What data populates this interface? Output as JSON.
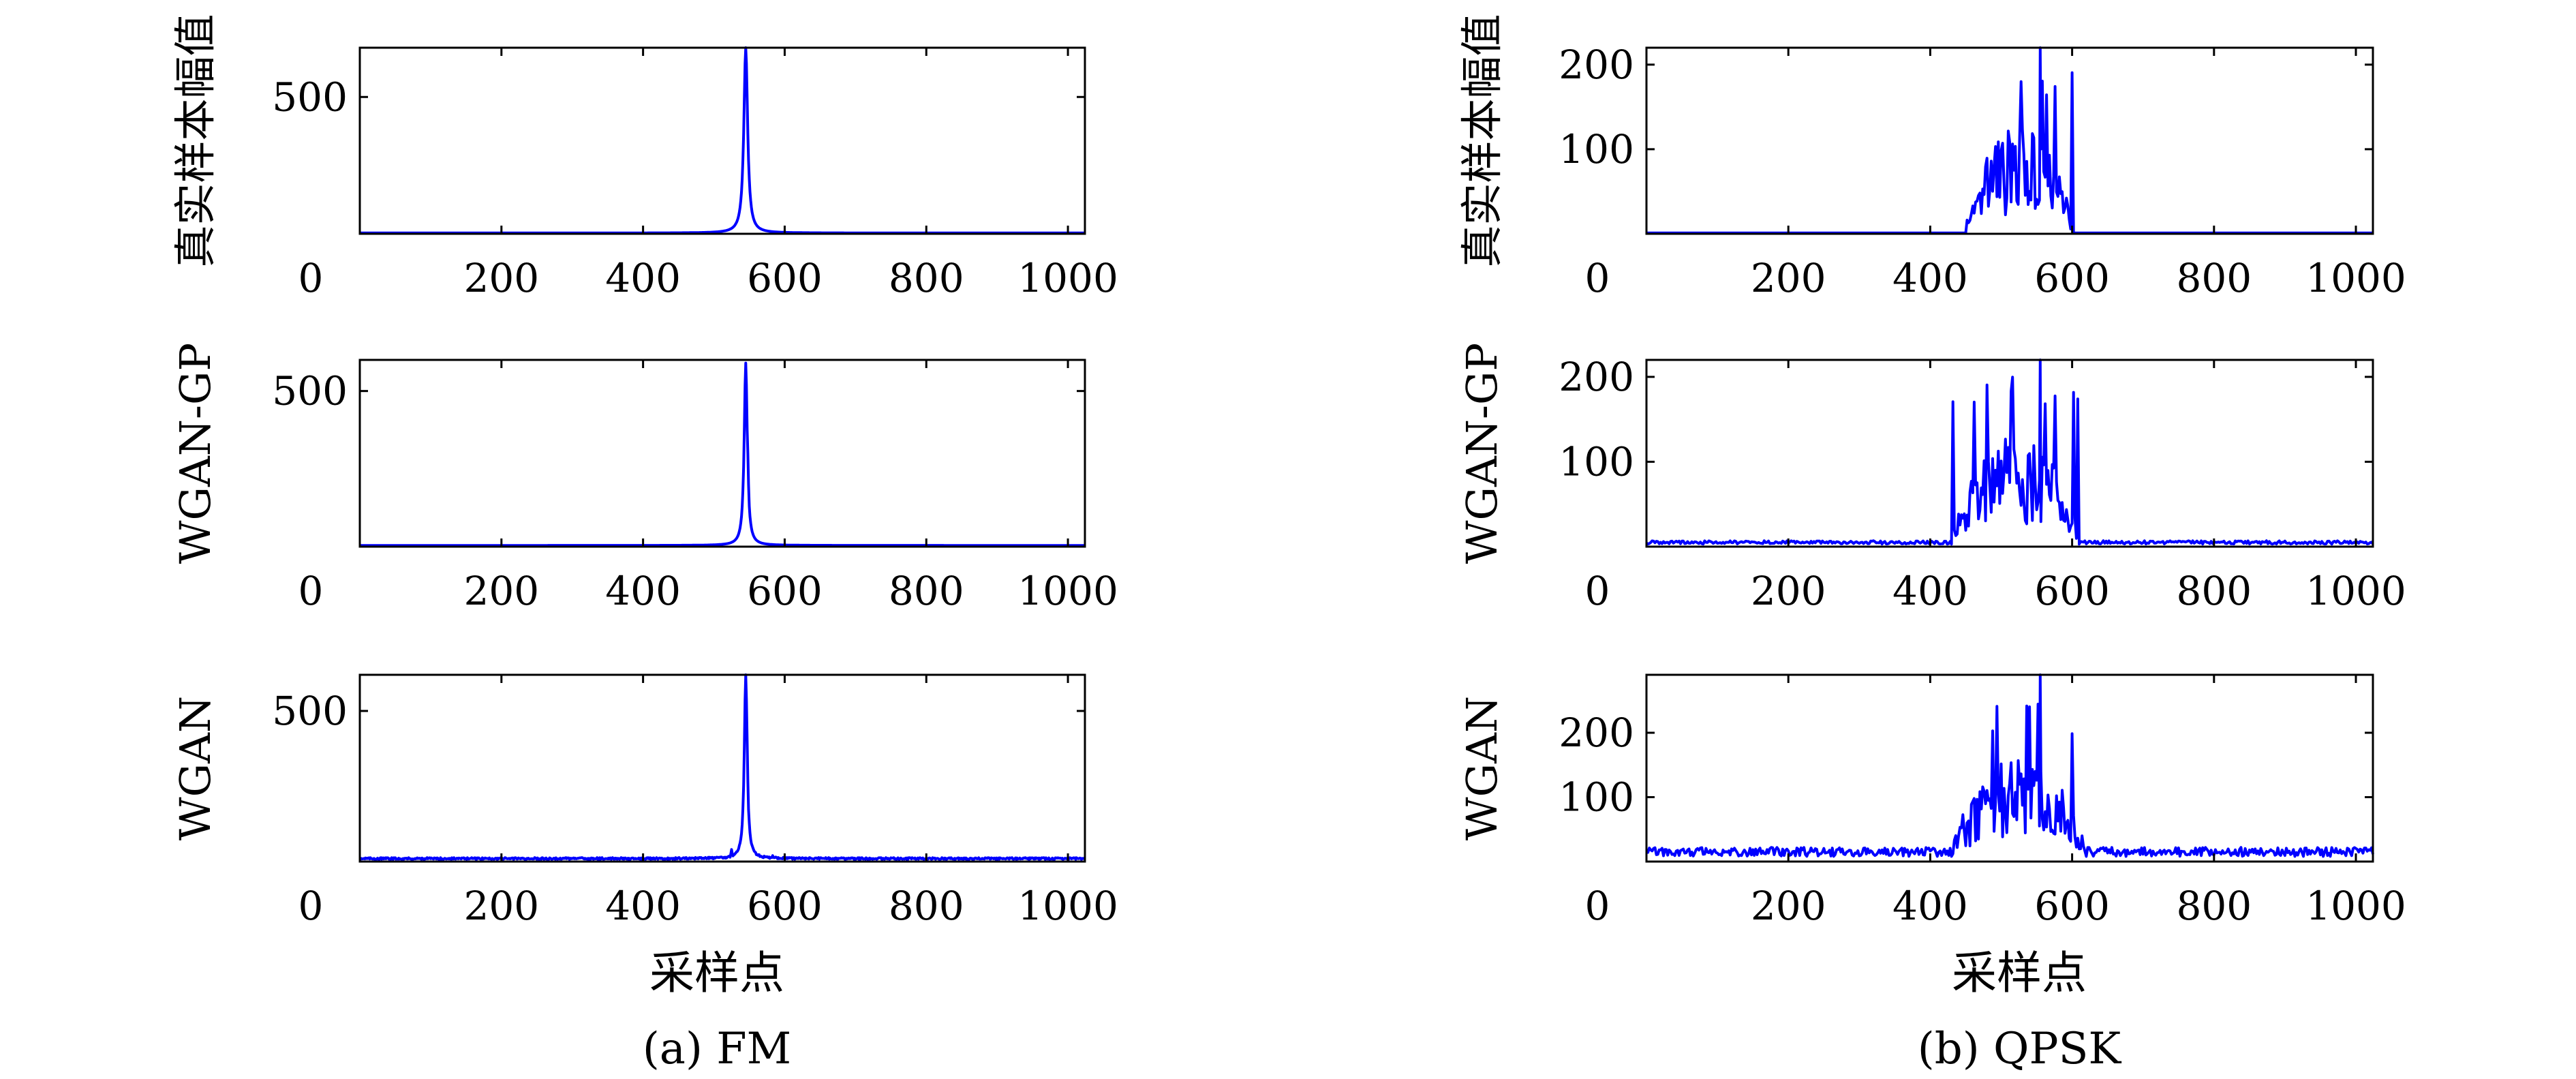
{
  "colors": {
    "series": "#0000ff",
    "axis": "#000000",
    "background": "#ffffff"
  },
  "panels": [
    {
      "caption": "(a) FM",
      "xlabel": "采样点"
    },
    {
      "caption": "(b) QPSK",
      "xlabel": "采样点"
    }
  ],
  "chart_data": [
    {
      "type": "line",
      "panel": "(a) FM",
      "ylabel": "真实样本幅值",
      "xlim": [
        0,
        1024
      ],
      "ylim": [
        0,
        680
      ],
      "xticks": [
        0,
        200,
        400,
        600,
        800,
        1000
      ],
      "yticks": [
        500
      ],
      "signal": {
        "kind": "FM",
        "peak_x": 545,
        "peak_y": 680,
        "floor": 3,
        "noise": 0,
        "width": 3.2,
        "secondary": [
          [
            543,
            440
          ]
        ]
      }
    },
    {
      "type": "line",
      "panel": "(a) FM",
      "ylabel": "WGAN-GP",
      "xlim": [
        0,
        1024
      ],
      "ylim": [
        0,
        600
      ],
      "xticks": [
        0,
        200,
        400,
        600,
        800,
        1000
      ],
      "yticks": [
        500
      ],
      "signal": {
        "kind": "FM",
        "peak_x": 545,
        "peak_y": 590,
        "floor": 4,
        "noise": 0,
        "width": 2.6,
        "secondary": [
          [
            548,
            300
          ]
        ]
      }
    },
    {
      "type": "line",
      "panel": "(a) FM",
      "ylabel": "WGAN",
      "xlim": [
        0,
        1024
      ],
      "ylim": [
        0,
        620
      ],
      "xticks": [
        0,
        200,
        400,
        600,
        800,
        1000
      ],
      "yticks": [
        500
      ],
      "signal": {
        "kind": "FM",
        "peak_x": 545,
        "peak_y": 620,
        "floor": 7,
        "noise": 6,
        "width": 2.4,
        "secondary": [
          [
            547,
            400
          ],
          [
            525,
            40
          ],
          [
            583,
            20
          ]
        ]
      }
    },
    {
      "type": "line",
      "panel": "(b) QPSK",
      "ylabel": "真实样本幅值",
      "xlim": [
        0,
        1024
      ],
      "ylim": [
        0,
        220
      ],
      "xticks": [
        0,
        200,
        400,
        600,
        800,
        1000
      ],
      "yticks": [
        100,
        200
      ],
      "signal": {
        "kind": "QPSK",
        "band": [
          450,
          600
        ],
        "level": 90,
        "floor": 1,
        "noise": 0,
        "max": 220,
        "seed": 11
      }
    },
    {
      "type": "line",
      "panel": "(b) QPSK",
      "ylabel": "WGAN-GP",
      "xlim": [
        0,
        1024
      ],
      "ylim": [
        0,
        220
      ],
      "xticks": [
        0,
        200,
        400,
        600,
        800,
        1000
      ],
      "yticks": [
        100,
        200
      ],
      "signal": {
        "kind": "QPSK",
        "band": [
          430,
          610
        ],
        "level": 90,
        "floor": 3,
        "noise": 4,
        "max": 220,
        "seed": 23
      }
    },
    {
      "type": "line",
      "panel": "(b) QPSK",
      "ylabel": "WGAN",
      "xlim": [
        0,
        1024
      ],
      "ylim": [
        0,
        290
      ],
      "xticks": [
        0,
        200,
        400,
        600,
        800,
        1000
      ],
      "yticks": [
        100,
        200
      ],
      "signal": {
        "kind": "QPSK",
        "band": [
          430,
          620
        ],
        "level": 110,
        "floor": 8,
        "noise": 14,
        "max": 290,
        "seed": 37
      }
    }
  ]
}
